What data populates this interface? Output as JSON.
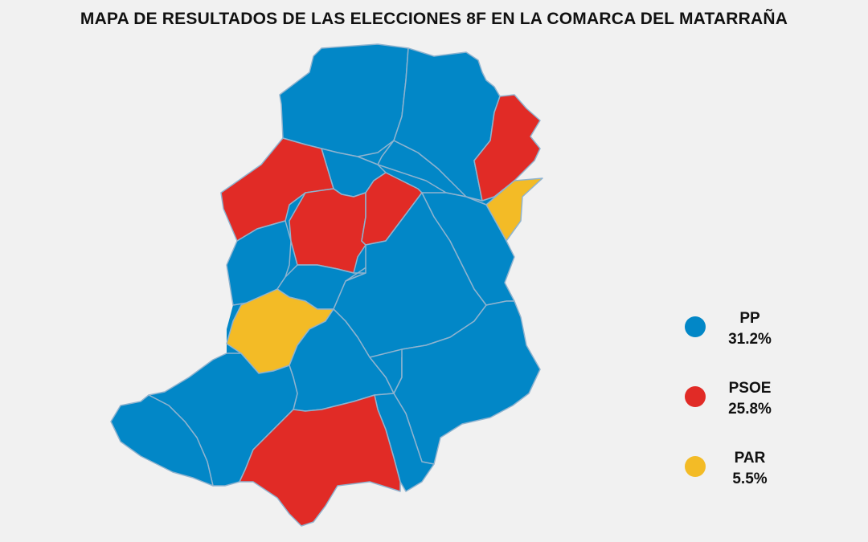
{
  "title": "MAPA DE RESULTADOS DE LAS ELECCIONES 8F EN LA COMARCA DEL MATARRAÑA",
  "colors": {
    "PP": "#0287c7",
    "PSOE": "#e12b26",
    "PAR": "#f3bb26",
    "border": "#8fb3cf",
    "background": "#f1f1f1"
  },
  "legend": [
    {
      "party": "PP",
      "value": "31.2%",
      "color": "#0287c7"
    },
    {
      "party": "PSOE",
      "value": "25.8%",
      "color": "#e12b26"
    },
    {
      "party": "PAR",
      "value": "5.5%",
      "color": "#f3bb26"
    }
  ],
  "regions": [
    {
      "winner": "PP"
    },
    {
      "winner": "PP"
    },
    {
      "winner": "PSOE"
    },
    {
      "winner": "PAR"
    },
    {
      "winner": "PP"
    },
    {
      "winner": "PSOE"
    },
    {
      "winner": "PP"
    },
    {
      "winner": "PSOE"
    },
    {
      "winner": "PSOE"
    },
    {
      "winner": "PP"
    },
    {
      "winner": "PP"
    },
    {
      "winner": "PP"
    },
    {
      "winner": "PP"
    },
    {
      "winner": "PAR"
    },
    {
      "winner": "PP"
    },
    {
      "winner": "PP"
    },
    {
      "winner": "PP"
    },
    {
      "winner": "PP"
    },
    {
      "winner": "PSOE"
    },
    {
      "winner": "PSOE"
    }
  ]
}
